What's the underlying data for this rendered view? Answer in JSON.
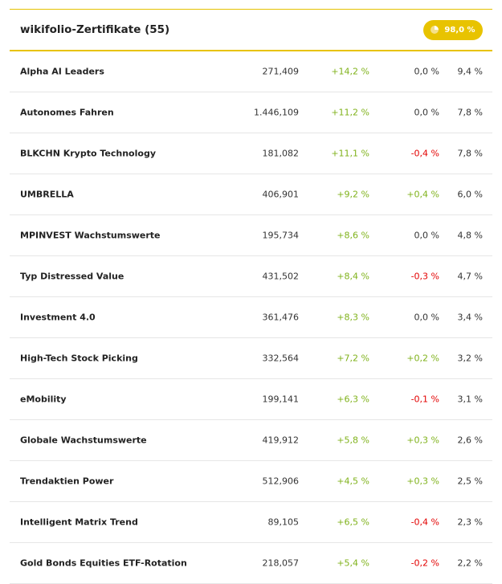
{
  "header": {
    "title": "wikifolio-Zertifikate (55)",
    "badge": "98,0 %",
    "badge_icon": "pie-chart-icon"
  },
  "colors": {
    "accent": "#e8c300",
    "positive": "#7fb21a",
    "negative": "#e30000"
  },
  "rows": [
    {
      "name": "Alpha AI Leaders",
      "value": "271,409",
      "perf": "+14,2 %",
      "change": "0,0 %",
      "weight": "9,4 %"
    },
    {
      "name": "Autonomes Fahren",
      "value": "1.446,109",
      "perf": "+11,2 %",
      "change": "0,0 %",
      "weight": "7,8 %"
    },
    {
      "name": "BLKCHN Krypto Technology",
      "value": "181,082",
      "perf": "+11,1 %",
      "change": "-0,4 %",
      "weight": "7,8 %"
    },
    {
      "name": "UMBRELLA",
      "value": "406,901",
      "perf": "+9,2 %",
      "change": "+0,4 %",
      "weight": "6,0 %"
    },
    {
      "name": "MPINVEST Wachstumswerte",
      "value": "195,734",
      "perf": "+8,6 %",
      "change": "0,0 %",
      "weight": "4,8 %"
    },
    {
      "name": "Typ Distressed Value",
      "value": "431,502",
      "perf": "+8,4 %",
      "change": "-0,3 %",
      "weight": "4,7 %"
    },
    {
      "name": "Investment 4.0",
      "value": "361,476",
      "perf": "+8,3 %",
      "change": "0,0 %",
      "weight": "3,4 %"
    },
    {
      "name": "High-Tech Stock Picking",
      "value": "332,564",
      "perf": "+7,2 %",
      "change": "+0,2 %",
      "weight": "3,2 %"
    },
    {
      "name": "eMobility",
      "value": "199,141",
      "perf": "+6,3 %",
      "change": "-0,1 %",
      "weight": "3,1 %"
    },
    {
      "name": "Globale Wachstumswerte",
      "value": "419,912",
      "perf": "+5,8 %",
      "change": "+0,3 %",
      "weight": "2,6 %"
    },
    {
      "name": "Trendaktien Power",
      "value": "512,906",
      "perf": "+4,5 %",
      "change": "+0,3 %",
      "weight": "2,5 %"
    },
    {
      "name": "Intelligent Matrix Trend",
      "value": "89,105",
      "perf": "+6,5 %",
      "change": "-0,4 %",
      "weight": "2,3 %"
    },
    {
      "name": "Gold Bonds Equities ETF-Rotation",
      "value": "218,057",
      "perf": "+5,4 %",
      "change": "-0,2 %",
      "weight": "2,2 %"
    }
  ]
}
